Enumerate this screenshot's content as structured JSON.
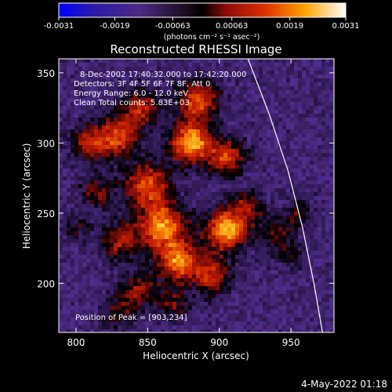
{
  "colorbar": {
    "tick_labels": [
      "-0.0031",
      "-0.0019",
      "-0.00063",
      "0.00063",
      "0.0019",
      "0.0031"
    ],
    "unit_label": "(photons cm⁻² s⁻¹ asec⁻²)",
    "range": [
      -0.0031,
      0.0031
    ]
  },
  "chart_data": {
    "type": "heatmap",
    "title": "Reconstructed RHESSI Image",
    "xlabel": "Heliocentric X (arcsec)",
    "ylabel": "Heliocentric Y (arcsec)",
    "xlim": [
      788,
      980
    ],
    "ylim": [
      165,
      360
    ],
    "x_ticks": [
      800,
      850,
      900,
      950
    ],
    "y_ticks": [
      200,
      250,
      300,
      350
    ],
    "annotations": [
      "8-Dec-2002 17:40:32.000 to 17:42:20.000",
      "Detectors: 3F 4F 5F 6F 7F 8F, Att 0",
      "Energy Range: 6.0 - 12.0 keV",
      "Clean     Total counts: 5.83E+03"
    ],
    "peak_label": "Position of Peak = [903,234]",
    "peak_position": [
      903,
      234
    ],
    "limb_curve": [
      [
        920,
        360
      ],
      [
        935,
        320
      ],
      [
        948,
        280
      ],
      [
        958,
        240
      ],
      [
        966,
        200
      ],
      [
        972,
        165
      ]
    ],
    "blobs": [
      [
        880,
        300,
        10,
        0.95
      ],
      [
        905,
        238,
        10,
        0.98
      ],
      [
        860,
        240,
        12,
        0.85
      ],
      [
        872,
        215,
        10,
        0.8
      ],
      [
        850,
        270,
        11,
        0.7
      ],
      [
        830,
        305,
        10,
        0.65
      ],
      [
        810,
        300,
        9,
        0.55
      ],
      [
        845,
        325,
        9,
        0.55
      ],
      [
        885,
        330,
        10,
        0.7
      ],
      [
        905,
        290,
        9,
        0.65
      ],
      [
        895,
        205,
        9,
        0.6
      ],
      [
        830,
        230,
        9,
        0.5
      ],
      [
        845,
        195,
        9,
        0.45
      ],
      [
        830,
        180,
        8,
        0.35
      ],
      [
        868,
        185,
        8,
        0.35
      ],
      [
        940,
        235,
        8,
        0.35
      ],
      [
        955,
        250,
        7,
        0.3
      ],
      [
        950,
        220,
        7,
        0.25
      ],
      [
        920,
        255,
        8,
        0.45
      ],
      [
        815,
        265,
        8,
        0.4
      ],
      [
        800,
        240,
        7,
        0.25
      ]
    ]
  },
  "footer": {
    "timestamp": "4-May-2022 01:18"
  }
}
